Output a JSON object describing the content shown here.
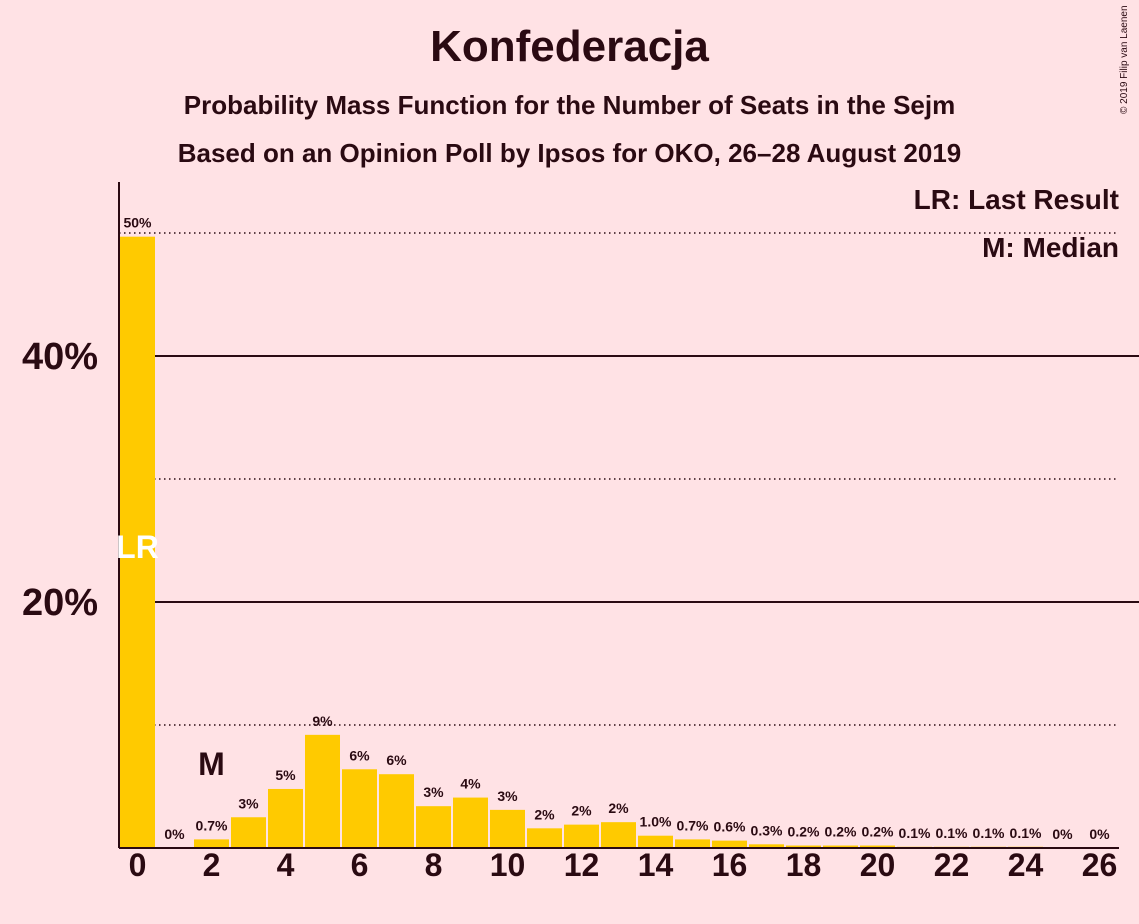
{
  "title": "Konfederacja",
  "subtitle1": "Probability Mass Function for the Number of Seats in the Sejm",
  "subtitle2": "Based on an Opinion Poll by Ipsos for OKO, 26–28 August 2019",
  "copyright": "© 2019 Filip van Laenen",
  "legend": {
    "lr": "LR: Last Result",
    "m": "M: Median"
  },
  "colors": {
    "bar": "#FFCA00",
    "background": "#FFE2E5",
    "text": "#2A0A12"
  },
  "chart_data": {
    "type": "bar",
    "x": [
      0,
      1,
      2,
      3,
      4,
      5,
      6,
      7,
      8,
      9,
      10,
      11,
      12,
      13,
      14,
      15,
      16,
      17,
      18,
      19,
      20,
      21,
      22,
      23,
      24,
      25,
      26
    ],
    "values": [
      49.7,
      0,
      0.7,
      2.5,
      4.8,
      9.2,
      6.4,
      6.0,
      3.4,
      4.1,
      3.1,
      1.6,
      1.9,
      2.1,
      1.0,
      0.7,
      0.6,
      0.3,
      0.2,
      0.2,
      0.2,
      0.1,
      0.1,
      0.1,
      0.1,
      0,
      0
    ],
    "data_labels": [
      "50%",
      "0%",
      "0.7%",
      "3%",
      "5%",
      "9%",
      "6%",
      "6%",
      "3%",
      "4%",
      "3%",
      "2%",
      "2%",
      "2%",
      "1.0%",
      "0.7%",
      "0.6%",
      "0.3%",
      "0.2%",
      "0.2%",
      "0.2%",
      "0.1%",
      "0.1%",
      "0.1%",
      "0.1%",
      "0%",
      "0%"
    ],
    "xticks": [
      "0",
      "2",
      "4",
      "6",
      "8",
      "10",
      "12",
      "14",
      "16",
      "18",
      "20",
      "22",
      "24",
      "26"
    ],
    "yticks": [
      "20%",
      "40%"
    ],
    "ylim": [
      0,
      54
    ],
    "gridlines_solid": [
      20,
      40
    ],
    "gridlines_dotted": [
      10,
      30,
      50
    ],
    "median_seat": 2,
    "median_marker": "M",
    "last_result_seat": 0,
    "last_result_marker": "LR"
  }
}
